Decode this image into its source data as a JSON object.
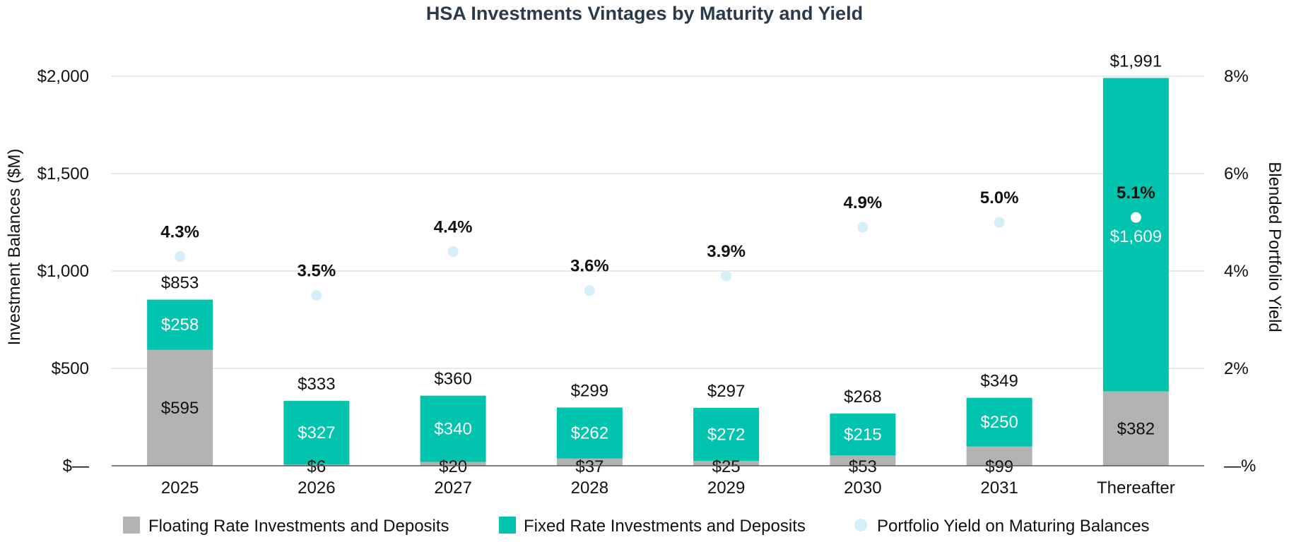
{
  "chart_data": {
    "type": "bar",
    "stacked": true,
    "title": "HSA Investments Vintages by Maturity and Yield",
    "ylabel": "Investment Balances ($M)",
    "y2label": "Blended Portfolio Yield",
    "ylim": [
      0,
      2000
    ],
    "y2lim": [
      0,
      8
    ],
    "yticks": [
      0,
      500,
      1000,
      1500,
      2000
    ],
    "ytick_labels": [
      "$—",
      "$500",
      "$1,000",
      "$1,500",
      "$2,000"
    ],
    "y2ticks": [
      0,
      2,
      4,
      6,
      8
    ],
    "y2tick_labels": [
      "—%",
      "2%",
      "4%",
      "6%",
      "8%"
    ],
    "categories": [
      "2025",
      "2026",
      "2027",
      "2028",
      "2029",
      "2030",
      "2031",
      "Thereafter"
    ],
    "series": [
      {
        "name": "Floating Rate Investments and Deposits",
        "color": "#b3b3b3",
        "values": [
          595,
          6,
          20,
          37,
          25,
          53,
          99,
          382
        ],
        "labels": [
          "$595",
          "$6",
          "$20",
          "$37",
          "$25",
          "$53",
          "$99",
          "$382"
        ]
      },
      {
        "name": "Fixed Rate Investments and Deposits",
        "color": "#00c4ae",
        "values": [
          258,
          327,
          340,
          262,
          272,
          215,
          250,
          1609
        ],
        "labels": [
          "$258",
          "$327",
          "$340",
          "$262",
          "$272",
          "$215",
          "$250",
          "$1,609"
        ]
      }
    ],
    "totals": [
      853,
      333,
      360,
      299,
      297,
      268,
      349,
      1991
    ],
    "total_labels": [
      "$853",
      "$333",
      "$360",
      "$299",
      "$297",
      "$268",
      "$349",
      "$1,991"
    ],
    "yield": {
      "name": "Portfolio Yield on Maturing Balances",
      "color": "#d4eefa",
      "values": [
        4.3,
        3.5,
        4.4,
        3.6,
        3.9,
        4.9,
        5.0,
        5.1
      ],
      "labels": [
        "4.3%",
        "3.5%",
        "4.4%",
        "3.6%",
        "3.9%",
        "4.9%",
        "5.0%",
        "5.1%"
      ]
    },
    "legend_position": "bottom",
    "grid": true
  }
}
